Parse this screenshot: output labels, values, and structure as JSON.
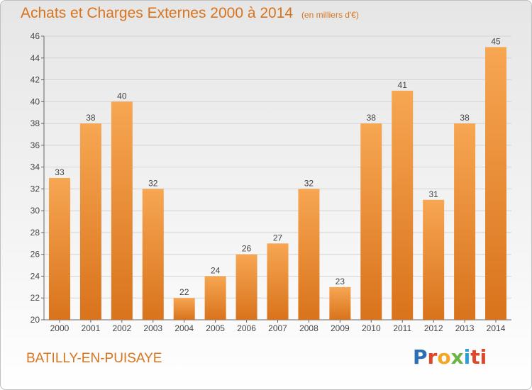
{
  "header": {
    "title": "Achats et Charges Externes 2000 à 2014",
    "unit": "(en milliers d'€)"
  },
  "footer": {
    "commune": "BATILLY-EN-PUISAYE",
    "logo": "Proxiti"
  },
  "colors": {
    "accent": "#d9731c",
    "bar_top": "#f7a652",
    "bar_bottom": "#d9731c"
  },
  "chart_data": {
    "type": "bar",
    "title": "Achats et Charges Externes 2000 à 2014",
    "subtitle": "(en milliers d'€)",
    "categories": [
      "2000",
      "2001",
      "2002",
      "2003",
      "2004",
      "2005",
      "2006",
      "2007",
      "2008",
      "2009",
      "2010",
      "2011",
      "2012",
      "2013",
      "2014"
    ],
    "values": [
      33,
      38,
      40,
      32,
      22,
      24,
      26,
      27,
      32,
      23,
      38,
      41,
      31,
      38,
      45
    ],
    "ylim": [
      20,
      46
    ],
    "yticks": [
      20,
      22,
      24,
      26,
      28,
      30,
      32,
      34,
      36,
      38,
      40,
      42,
      44,
      46
    ],
    "grid": true,
    "data_labels": true
  }
}
